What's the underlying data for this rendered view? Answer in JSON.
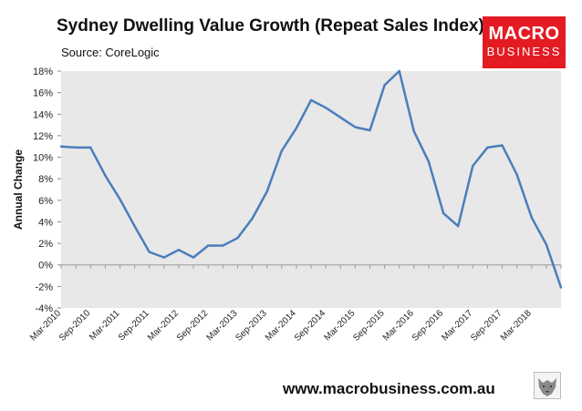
{
  "header": {
    "title": "Sydney Dwelling Value Growth (Repeat Sales Index)",
    "source": "Source: CoreLogic"
  },
  "logo": {
    "line1": "MACRO",
    "line2": "BUSINESS"
  },
  "footer": {
    "website": "www.macrobusiness.com.au"
  },
  "chart_data": {
    "type": "line",
    "title": "Sydney Dwelling Value Growth (Repeat Sales Index)",
    "xlabel": "",
    "ylabel": "Annual Change",
    "ylim": [
      -4,
      18
    ],
    "yticks": [
      -4,
      -2,
      0,
      2,
      4,
      6,
      8,
      10,
      12,
      14,
      16,
      18
    ],
    "ytick_labels": [
      "-4%",
      "-2%",
      "0%",
      "2%",
      "4%",
      "6%",
      "8%",
      "10%",
      "12%",
      "14%",
      "16%",
      "18%"
    ],
    "grid": false,
    "x_labels": [
      {
        "index": 0,
        "label": "Mar-2010"
      },
      {
        "index": 2,
        "label": "Sep-2010"
      },
      {
        "index": 4,
        "label": "Mar-2011"
      },
      {
        "index": 6,
        "label": "Sep-2011"
      },
      {
        "index": 8,
        "label": "Mar-2012"
      },
      {
        "index": 10,
        "label": "Sep-2012"
      },
      {
        "index": 12,
        "label": "Mar-2013"
      },
      {
        "index": 14,
        "label": "Sep-2013"
      },
      {
        "index": 16,
        "label": "Mar-2014"
      },
      {
        "index": 18,
        "label": "Sep-2014"
      },
      {
        "index": 20,
        "label": "Mar-2015"
      },
      {
        "index": 22,
        "label": "Sep-2015"
      },
      {
        "index": 24,
        "label": "Mar-2016"
      },
      {
        "index": 26,
        "label": "Sep-2016"
      },
      {
        "index": 28,
        "label": "Mar-2017"
      },
      {
        "index": 30,
        "label": "Sep-2017"
      },
      {
        "index": 32,
        "label": "Mar-2018"
      }
    ],
    "series": [
      {
        "name": "Annual Change",
        "color": "#4a7ebb",
        "values": [
          11.0,
          10.9,
          10.9,
          8.3,
          6.1,
          3.6,
          1.2,
          0.7,
          1.4,
          0.7,
          1.8,
          1.8,
          2.5,
          4.3,
          6.8,
          10.6,
          12.7,
          15.3,
          14.6,
          13.7,
          12.8,
          12.5,
          16.7,
          18.0,
          12.4,
          9.6,
          4.8,
          3.6,
          9.2,
          10.9,
          11.1,
          8.4,
          4.4,
          1.9,
          -2.1
        ]
      }
    ],
    "colors": {
      "plot_background": "#e8e8e8",
      "line": "#4a7ebb"
    }
  }
}
